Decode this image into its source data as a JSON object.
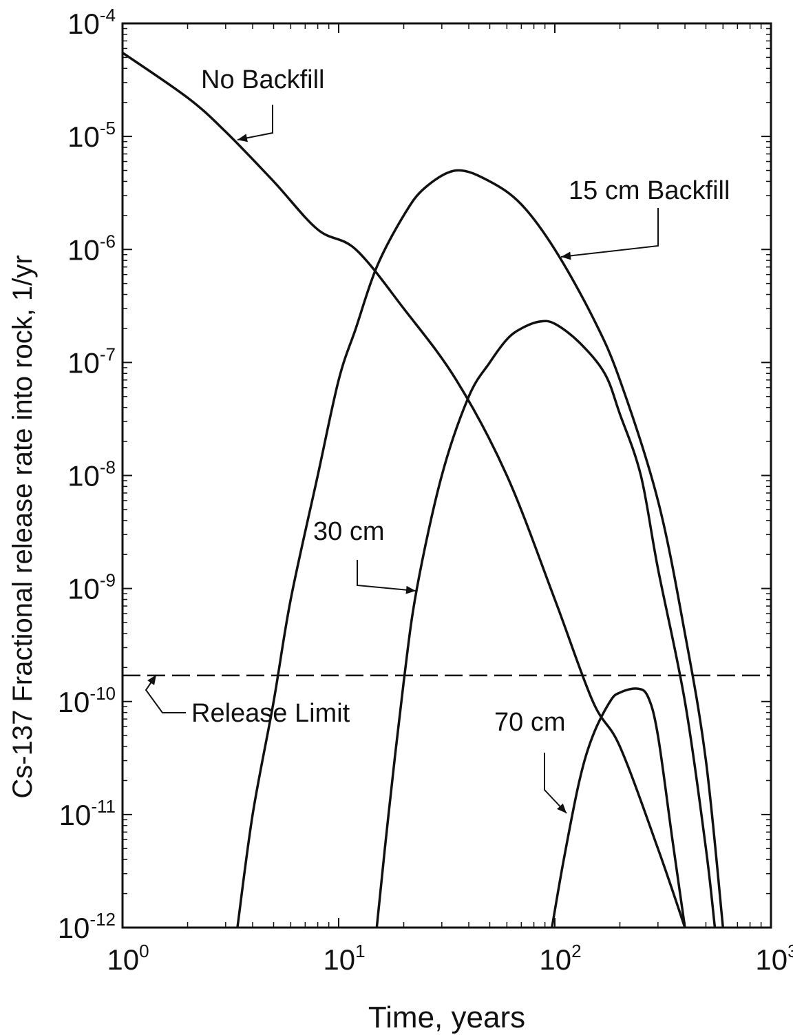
{
  "chart_data": {
    "type": "line",
    "title": "",
    "xlabel": "Time, years",
    "ylabel": "Cs-137 Fractional release rate into rock, 1/yr",
    "xscale": "log",
    "yscale": "log",
    "xlim": [
      1,
      1000
    ],
    "ylim": [
      1e-12,
      0.0001
    ],
    "grid": false,
    "x_ticks": [
      {
        "value": 1,
        "base": "10",
        "exp": "0"
      },
      {
        "value": 10,
        "base": "10",
        "exp": "1"
      },
      {
        "value": 100,
        "base": "10",
        "exp": "2"
      },
      {
        "value": 1000,
        "base": "10",
        "exp": "3"
      }
    ],
    "y_ticks": [
      {
        "value": 0.0001,
        "base": "10",
        "exp": "-4"
      },
      {
        "value": 1e-05,
        "base": "10",
        "exp": "-5"
      },
      {
        "value": 1e-06,
        "base": "10",
        "exp": "-6"
      },
      {
        "value": 1e-07,
        "base": "10",
        "exp": "-7"
      },
      {
        "value": 1e-08,
        "base": "10",
        "exp": "-8"
      },
      {
        "value": 1e-09,
        "base": "10",
        "exp": "-9"
      },
      {
        "value": 1e-10,
        "base": "10",
        "exp": "-10"
      },
      {
        "value": 1e-11,
        "base": "10",
        "exp": "-11"
      },
      {
        "value": 1e-12,
        "base": "10",
        "exp": "-12"
      }
    ],
    "series": [
      {
        "key": "no-backfill",
        "name": "No Backfill",
        "x": [
          1,
          2,
          3,
          5,
          8,
          12,
          20,
          35,
          60,
          100,
          150,
          200,
          300,
          400
        ],
        "y": [
          5.5e-05,
          2.2e-05,
          1.1e-05,
          4e-06,
          1.5e-06,
          1e-06,
          3e-07,
          7e-08,
          1e-08,
          8e-10,
          1e-10,
          4e-11,
          5e-12,
          1e-12
        ]
      },
      {
        "key": "15cm",
        "name": "15 cm Backfill",
        "x": [
          3.4,
          4,
          5,
          6,
          8,
          10,
          12,
          15,
          20,
          25,
          35,
          50,
          70,
          100,
          150,
          200,
          300,
          400,
          500,
          600
        ],
        "y": [
          1e-12,
          1e-11,
          1e-10,
          8e-10,
          1e-08,
          7e-08,
          2e-07,
          7e-07,
          2e-06,
          3.5e-06,
          5e-06,
          4e-06,
          2.5e-06,
          1e-06,
          2.5e-07,
          7e-08,
          6e-09,
          4e-10,
          3e-11,
          1e-12
        ]
      },
      {
        "key": "30cm",
        "name": "30 cm",
        "x": [
          15,
          17,
          20,
          23,
          30,
          40,
          50,
          60,
          70,
          85,
          100,
          130,
          170,
          200,
          250,
          300,
          400,
          500,
          550
        ],
        "y": [
          1e-12,
          1e-11,
          1.5e-10,
          1e-09,
          1e-08,
          5e-08,
          1e-07,
          1.6e-07,
          2e-07,
          2.3e-07,
          2.2e-07,
          1.5e-07,
          8e-08,
          3.5e-08,
          1e-08,
          1.5e-09,
          1e-10,
          5e-12,
          1e-12
        ]
      },
      {
        "key": "70cm",
        "name": "70 cm",
        "x": [
          97,
          110,
          130,
          150,
          180,
          200,
          240,
          270,
          300,
          350,
          400
        ],
        "y": [
          1e-12,
          4e-12,
          2e-11,
          5e-11,
          1e-10,
          1.2e-10,
          1.3e-10,
          1.1e-10,
          5e-11,
          6e-12,
          1e-12
        ]
      }
    ],
    "release_limit": {
      "label": "Release Limit",
      "y": 1.7e-10
    },
    "annotations": [
      {
        "key": "no-backfill",
        "text": "No Backfill"
      },
      {
        "key": "15cm",
        "text": "15 cm Backfill"
      },
      {
        "key": "30cm",
        "text": "30 cm"
      },
      {
        "key": "70cm",
        "text": "70 cm"
      },
      {
        "key": "release-limit",
        "text": "Release Limit"
      }
    ]
  }
}
